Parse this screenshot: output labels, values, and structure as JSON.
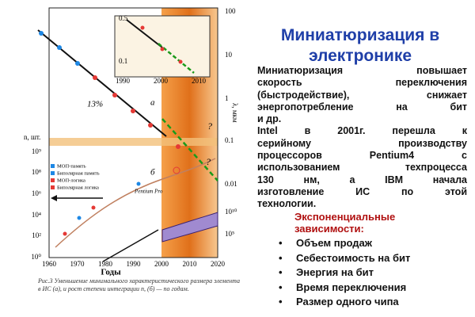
{
  "slide": {
    "title": [
      "Миниатюризация в",
      "электронике"
    ],
    "paragraph": [
      "Миниатюризация повышает",
      "скорость переключения",
      "(быстродействие), снижает",
      "энергопотребление на бит",
      "и др.",
      "Intel в 2001г. перешла к",
      "серийному производству",
      "процессоров Pentium4 с",
      "использованием техпроцесса",
      "130 нм, а IBM начала",
      "изготовление ИС по этой",
      "технологии."
    ],
    "subheading": [
      "Экспоненциальные",
      "зависимости:"
    ],
    "bullets": [
      "Объем продаж",
      "Себестоимость на бит",
      "Энергия на бит",
      "Время переключения",
      "Размер одного чипа"
    ]
  },
  "figure": {
    "left_axis_label": "n, шт.",
    "left_ticks": [
      "10⁹",
      "10⁸",
      "10⁶",
      "10⁴",
      "10²",
      "10⁰"
    ],
    "right_axis_label": "λ, мкм",
    "right_ticks": [
      "100",
      "10",
      "1",
      "0.1",
      "0.01",
      "10¹⁰",
      "10⁵"
    ],
    "x_ticks": [
      "1960",
      "1970",
      "1980",
      "1990",
      "2000",
      "2010",
      "2020"
    ],
    "x_label": "Годы",
    "inset_y_ticks": [
      "0.5",
      "0.1"
    ],
    "inset_x_ticks": [
      "1990",
      "2000",
      "2010"
    ],
    "annotations": [
      "13%",
      "а",
      "б",
      "Pentium Pro",
      "?",
      "?"
    ],
    "legend": [
      "МОП-память",
      "Биполярная память",
      "МОП-логика",
      "Биполярная логика"
    ],
    "caption": "Рис.3  Уменьшение минимального характеристического размера элемента в ИС (а), и рост степени интеграции n, (б) — по годам."
  }
}
